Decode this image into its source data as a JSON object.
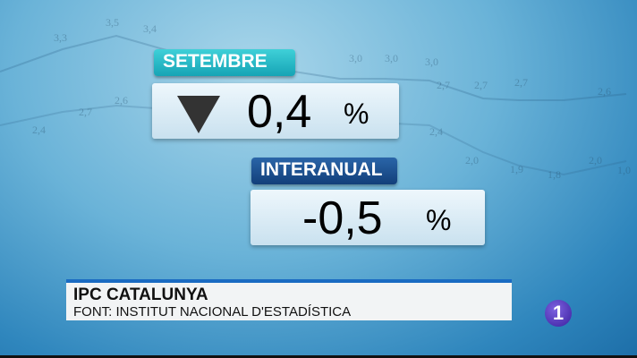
{
  "month_tag": "SETEMBRE",
  "monthly": {
    "value": "0,4",
    "unit": "%",
    "trend_icon": "down-triangle-icon"
  },
  "annual_tag": "INTERANUAL",
  "annual": {
    "value": "-0,5",
    "unit": "%"
  },
  "lower_third": {
    "title": "IPC CATALUNYA",
    "source": "FONT: INSTITUT NACIONAL D'ESTADÍSTICA"
  },
  "channel_logo": "1",
  "background_values": [
    "3,3",
    "3,5",
    "3,4",
    "2,7",
    "2,6",
    "2,4",
    "3,0",
    "3,0",
    "3,0",
    "2,7",
    "2,7",
    "2,7",
    "2,4",
    "2,0",
    "1,9",
    "1,8",
    "2,0",
    "2,6",
    "1,0"
  ],
  "colors": {
    "month_tag": "#22b5c4",
    "annual_tag": "#1a4e8e",
    "lower_third_accent": "#1a6bc2",
    "logo": "#4b2db5"
  }
}
